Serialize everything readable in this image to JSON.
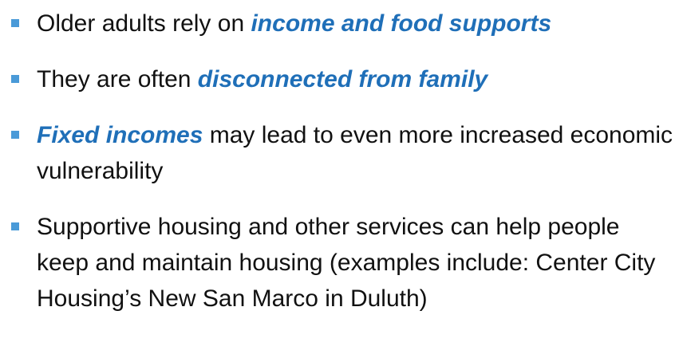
{
  "bullets": [
    {
      "segments": [
        {
          "text": "Older adults rely on "
        },
        {
          "text": "income and food supports",
          "emphasis": true
        }
      ]
    },
    {
      "segments": [
        {
          "text": "They are often "
        },
        {
          "text": "disconnected from family",
          "emphasis": true
        }
      ]
    },
    {
      "segments": [
        {
          "text": "Fixed incomes",
          "emphasis": true
        },
        {
          "text": " may lead to even more increased economic vulnerability"
        }
      ]
    },
    {
      "segments": [
        {
          "text": "Supportive housing and other services can help people keep and maintain housing (examples include: Center City Housing’s New San Marco in Duluth)"
        }
      ]
    }
  ]
}
